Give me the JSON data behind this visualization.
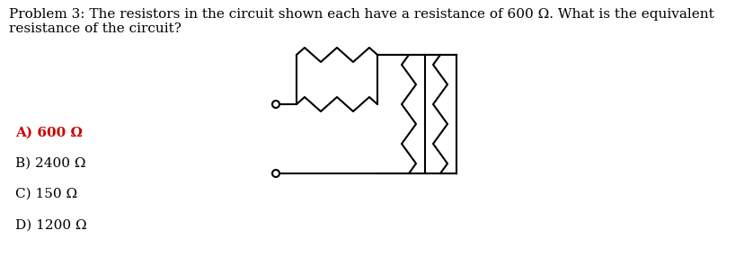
{
  "title_text": "Problem 3: The resistors in the circuit shown each have a resistance of 600 Ω. What is the equivalent\nresistance of the circuit?",
  "answer_A": "A) 600 Ω",
  "answer_B": "B) 2400 Ω",
  "answer_C": "C) 150 Ω",
  "answer_D": "D) 1200 Ω",
  "answer_A_color": "#cc0000",
  "answer_BCD_color": "#000000",
  "title_color": "#000000",
  "bg_color": "#ffffff",
  "circuit_color": "#000000",
  "title_fontsize": 11,
  "answer_fontsize": 11
}
